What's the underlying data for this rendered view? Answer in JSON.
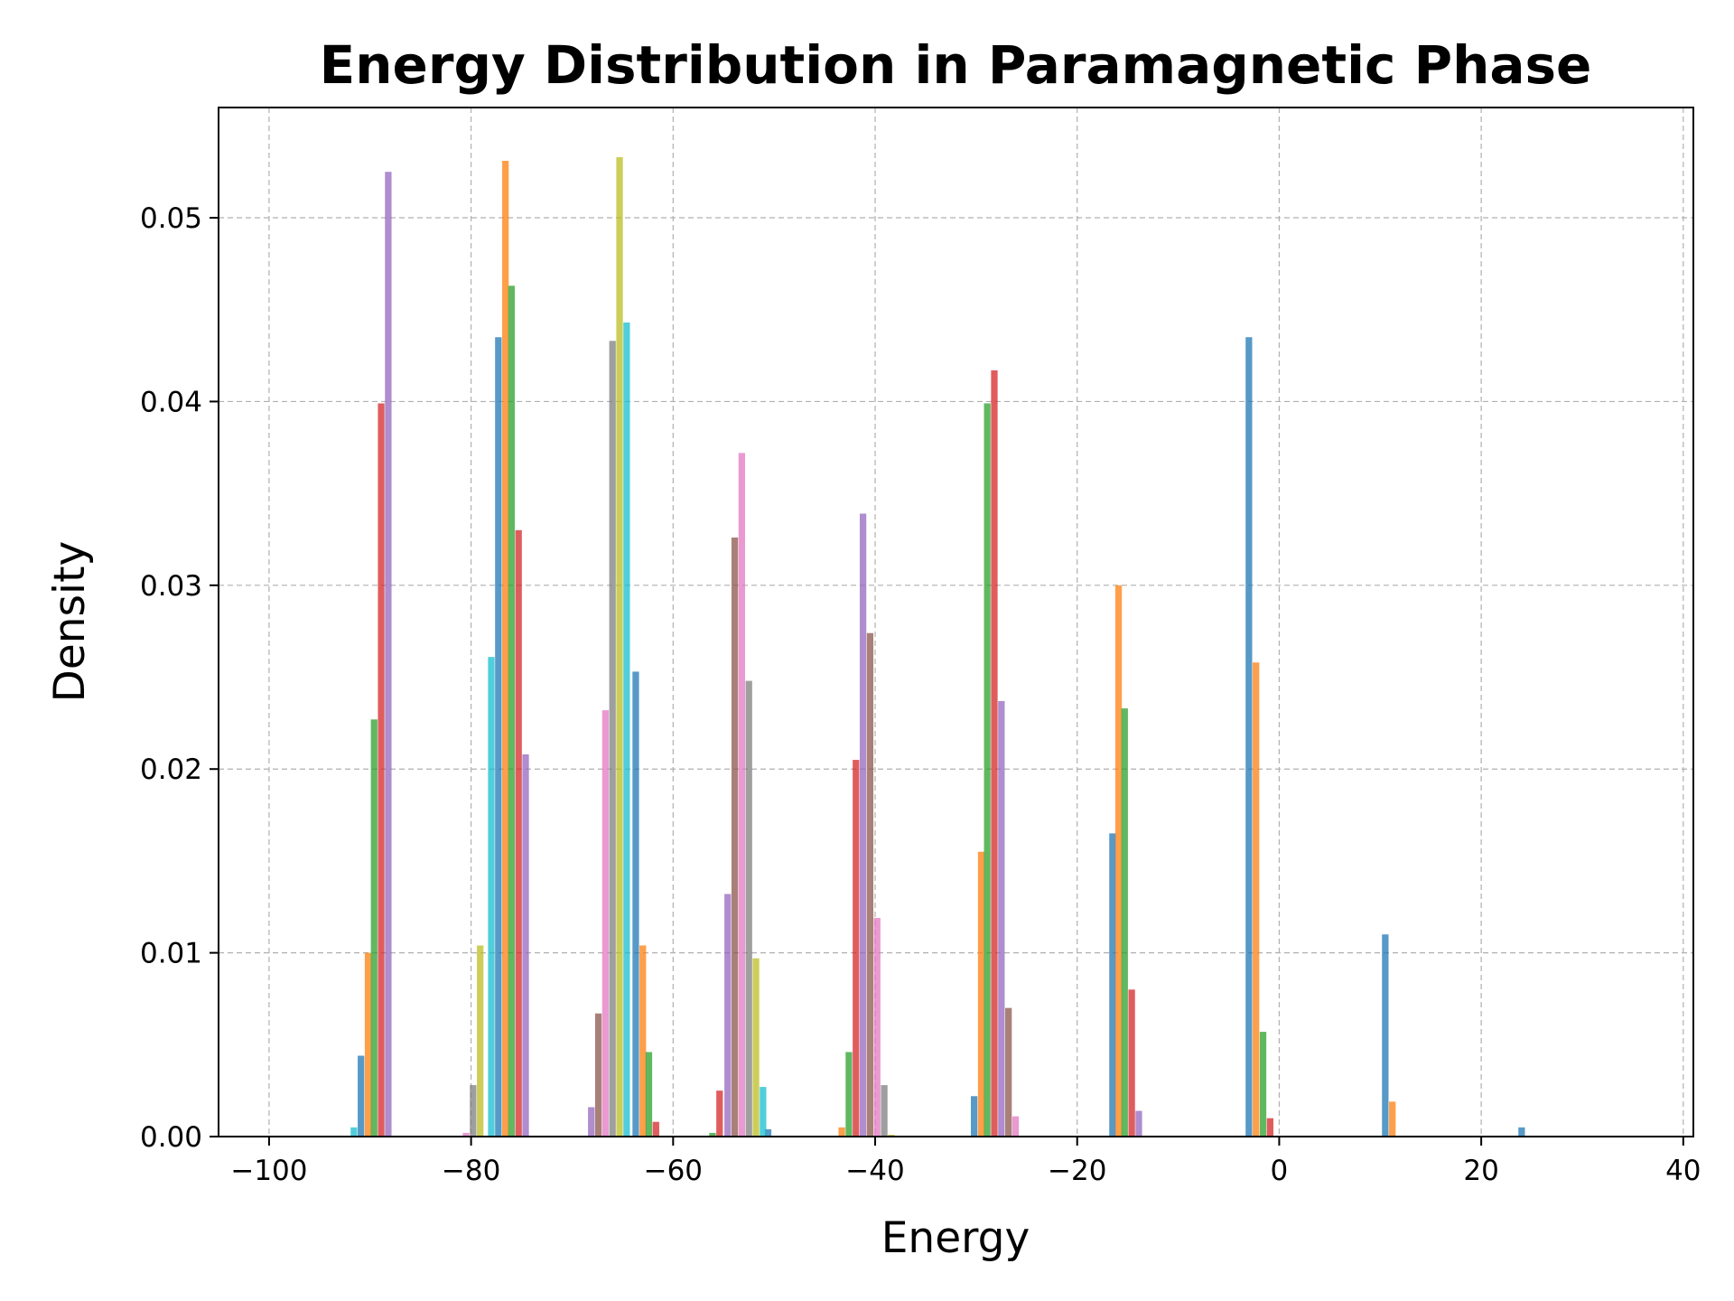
{
  "chart_data": {
    "type": "bar",
    "title": "Energy Distribution in Paramagnetic Phase",
    "xlabel": "Energy",
    "ylabel": "Density",
    "xlim": [
      -105,
      41
    ],
    "ylim": [
      0,
      0.056
    ],
    "grid": true,
    "xticks": [
      -100,
      -80,
      -60,
      -40,
      -20,
      0,
      20,
      40
    ],
    "xtick_labels": [
      "−100",
      "−80",
      "−60",
      "−40",
      "−20",
      "0",
      "20",
      "40"
    ],
    "yticks": [
      0.0,
      0.01,
      0.02,
      0.03,
      0.04,
      0.05
    ],
    "ytick_labels": [
      "0.00",
      "0.01",
      "0.02",
      "0.03",
      "0.04",
      "0.05"
    ],
    "bar_width": 0.65,
    "opacity": 0.75,
    "series": [
      {
        "color": "#1f77b4",
        "bins": [
          [
            -90.9,
            0.0044
          ],
          [
            -77.3,
            0.0435
          ],
          [
            -63.7,
            0.0253
          ],
          [
            -50.6,
            0.0004
          ],
          [
            -30.2,
            0.0022
          ],
          [
            -16.5,
            0.0165
          ],
          [
            -3.0,
            0.0435
          ],
          [
            10.5,
            0.011
          ],
          [
            24.0,
            0.0005
          ]
        ]
      },
      {
        "color": "#ff7f0e",
        "bins": [
          [
            -90.2,
            0.01
          ],
          [
            -76.6,
            0.0531
          ],
          [
            -63.0,
            0.0104
          ],
          [
            -43.3,
            0.0005
          ],
          [
            -29.5,
            0.0155
          ],
          [
            -15.9,
            0.03
          ],
          [
            -2.3,
            0.0258
          ],
          [
            11.2,
            0.0019
          ]
        ]
      },
      {
        "color": "#2ca02c",
        "bins": [
          [
            -89.6,
            0.0227
          ],
          [
            -76.0,
            0.0463
          ],
          [
            -62.4,
            0.0046
          ],
          [
            -56.1,
            0.0002
          ],
          [
            -42.6,
            0.0046
          ],
          [
            -28.9,
            0.0399
          ],
          [
            -15.3,
            0.0233
          ],
          [
            -1.6,
            0.0057
          ]
        ]
      },
      {
        "color": "#d62728",
        "bins": [
          [
            -88.9,
            0.0399
          ],
          [
            -75.3,
            0.033
          ],
          [
            -61.7,
            0.0008
          ],
          [
            -55.4,
            0.0025
          ],
          [
            -41.9,
            0.0205
          ],
          [
            -28.2,
            0.0417
          ],
          [
            -14.6,
            0.008
          ],
          [
            -0.9,
            0.001
          ]
        ]
      },
      {
        "color": "#9467bd",
        "bins": [
          [
            -88.2,
            0.0525
          ],
          [
            -74.6,
            0.0208
          ],
          [
            -68.1,
            0.0016
          ],
          [
            -54.6,
            0.0132
          ],
          [
            -41.2,
            0.0339
          ],
          [
            -27.5,
            0.0237
          ],
          [
            -13.9,
            0.0014
          ]
        ]
      },
      {
        "color": "#8c564b",
        "bins": [
          [
            -67.4,
            0.0067
          ],
          [
            -53.9,
            0.0326
          ],
          [
            -40.5,
            0.0274
          ],
          [
            -26.8,
            0.007
          ]
        ]
      },
      {
        "color": "#e377c2",
        "bins": [
          [
            -80.5,
            0.0002
          ],
          [
            -66.7,
            0.0232
          ],
          [
            -53.2,
            0.0372
          ],
          [
            -39.8,
            0.0119
          ],
          [
            -26.1,
            0.0011
          ]
        ]
      },
      {
        "color": "#7f7f7f",
        "bins": [
          [
            -79.8,
            0.0028
          ],
          [
            -66.0,
            0.0433
          ],
          [
            -52.5,
            0.0248
          ],
          [
            -39.1,
            0.0028
          ]
        ]
      },
      {
        "color": "#bcbd22",
        "bins": [
          [
            -79.1,
            0.0104
          ],
          [
            -65.3,
            0.0533
          ],
          [
            -51.8,
            0.0097
          ],
          [
            -38.4,
            0.0001
          ]
        ]
      },
      {
        "color": "#17becf",
        "bins": [
          [
            -91.6,
            0.0005
          ],
          [
            -78.0,
            0.0261
          ],
          [
            -64.6,
            0.0443
          ],
          [
            -51.1,
            0.0027
          ]
        ]
      }
    ]
  }
}
